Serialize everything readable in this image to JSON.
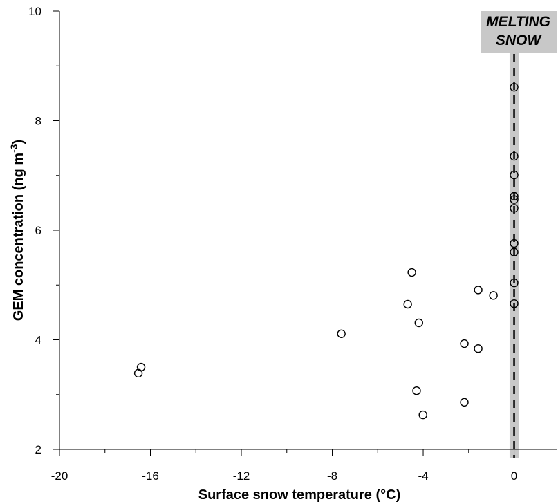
{
  "chart_data": {
    "type": "scatter",
    "xlabel": "Surface snow temperature (°C)",
    "ylabel": [
      "GEM concentration (ng m",
      "-3",
      ")"
    ],
    "xlim": [
      -20,
      1.9
    ],
    "ylim": [
      2,
      10
    ],
    "xticks": [
      -20,
      -16,
      -12,
      -8,
      -4,
      0
    ],
    "yticks": [
      2,
      4,
      6,
      8,
      10
    ],
    "xminorticks": [
      -18,
      -14,
      -10,
      -6,
      -2
    ],
    "yminorticks": [
      3,
      5,
      7,
      9
    ],
    "band": [
      -0.2,
      0.2
    ],
    "band_color": "#c8c8c8",
    "vline": 0,
    "annotation": [
      "MELTING",
      "SNOW"
    ],
    "series": [
      {
        "x": [
          -16.41,
          -16.53,
          -7.6,
          -4.5,
          -4.68,
          -4.19,
          -4.29,
          -4.01,
          -2.19,
          -2.19,
          -1.58,
          -1.58,
          -0.91,
          0,
          0,
          0,
          0,
          0,
          0,
          0,
          0,
          0,
          0
        ],
        "values": [
          3.5,
          3.39,
          4.11,
          5.23,
          4.65,
          4.31,
          3.07,
          2.63,
          3.93,
          2.86,
          4.91,
          3.84,
          4.81,
          8.61,
          7.35,
          7.01,
          6.62,
          6.56,
          6.4,
          5.76,
          5.6,
          5.04,
          4.66
        ],
        "color": "#000000"
      }
    ]
  }
}
